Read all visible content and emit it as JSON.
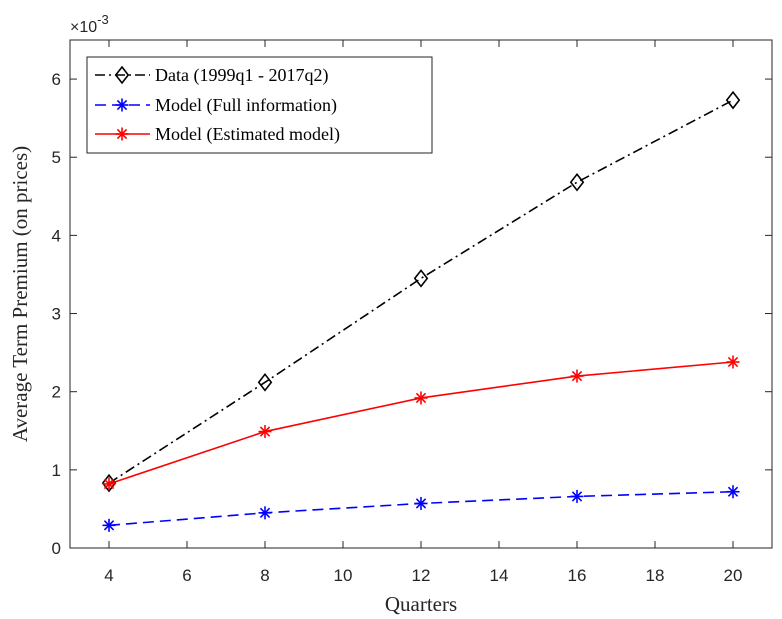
{
  "chart_data": {
    "type": "line",
    "xlabel": "Quarters",
    "ylabel": "Average Term Premium (on prices)",
    "y_exponent_base": "×10",
    "y_exponent_power": "-3",
    "xlim": [
      3,
      21
    ],
    "ylim": [
      0,
      6.5
    ],
    "xticks": [
      4,
      6,
      8,
      10,
      12,
      14,
      16,
      18,
      20
    ],
    "yticks": [
      0,
      1,
      2,
      3,
      4,
      5,
      6
    ],
    "grid": false,
    "legend_position": "top-left",
    "x": [
      4,
      8,
      12,
      16,
      20
    ],
    "series": [
      {
        "name": "Data (1999q1 - 2017q2)",
        "values": [
          0.83,
          2.12,
          3.45,
          4.68,
          5.73
        ],
        "color": "#000000",
        "line_style": "dash-dot",
        "marker": "diamond"
      },
      {
        "name": "Model (Full information)",
        "values": [
          0.29,
          0.45,
          0.57,
          0.66,
          0.72
        ],
        "color": "#0000ff",
        "line_style": "dashed",
        "marker": "asterisk"
      },
      {
        "name": "Model (Estimated model)",
        "values": [
          0.82,
          1.49,
          1.92,
          2.2,
          2.38
        ],
        "color": "#ff0000",
        "line_style": "solid",
        "marker": "asterisk"
      }
    ]
  }
}
